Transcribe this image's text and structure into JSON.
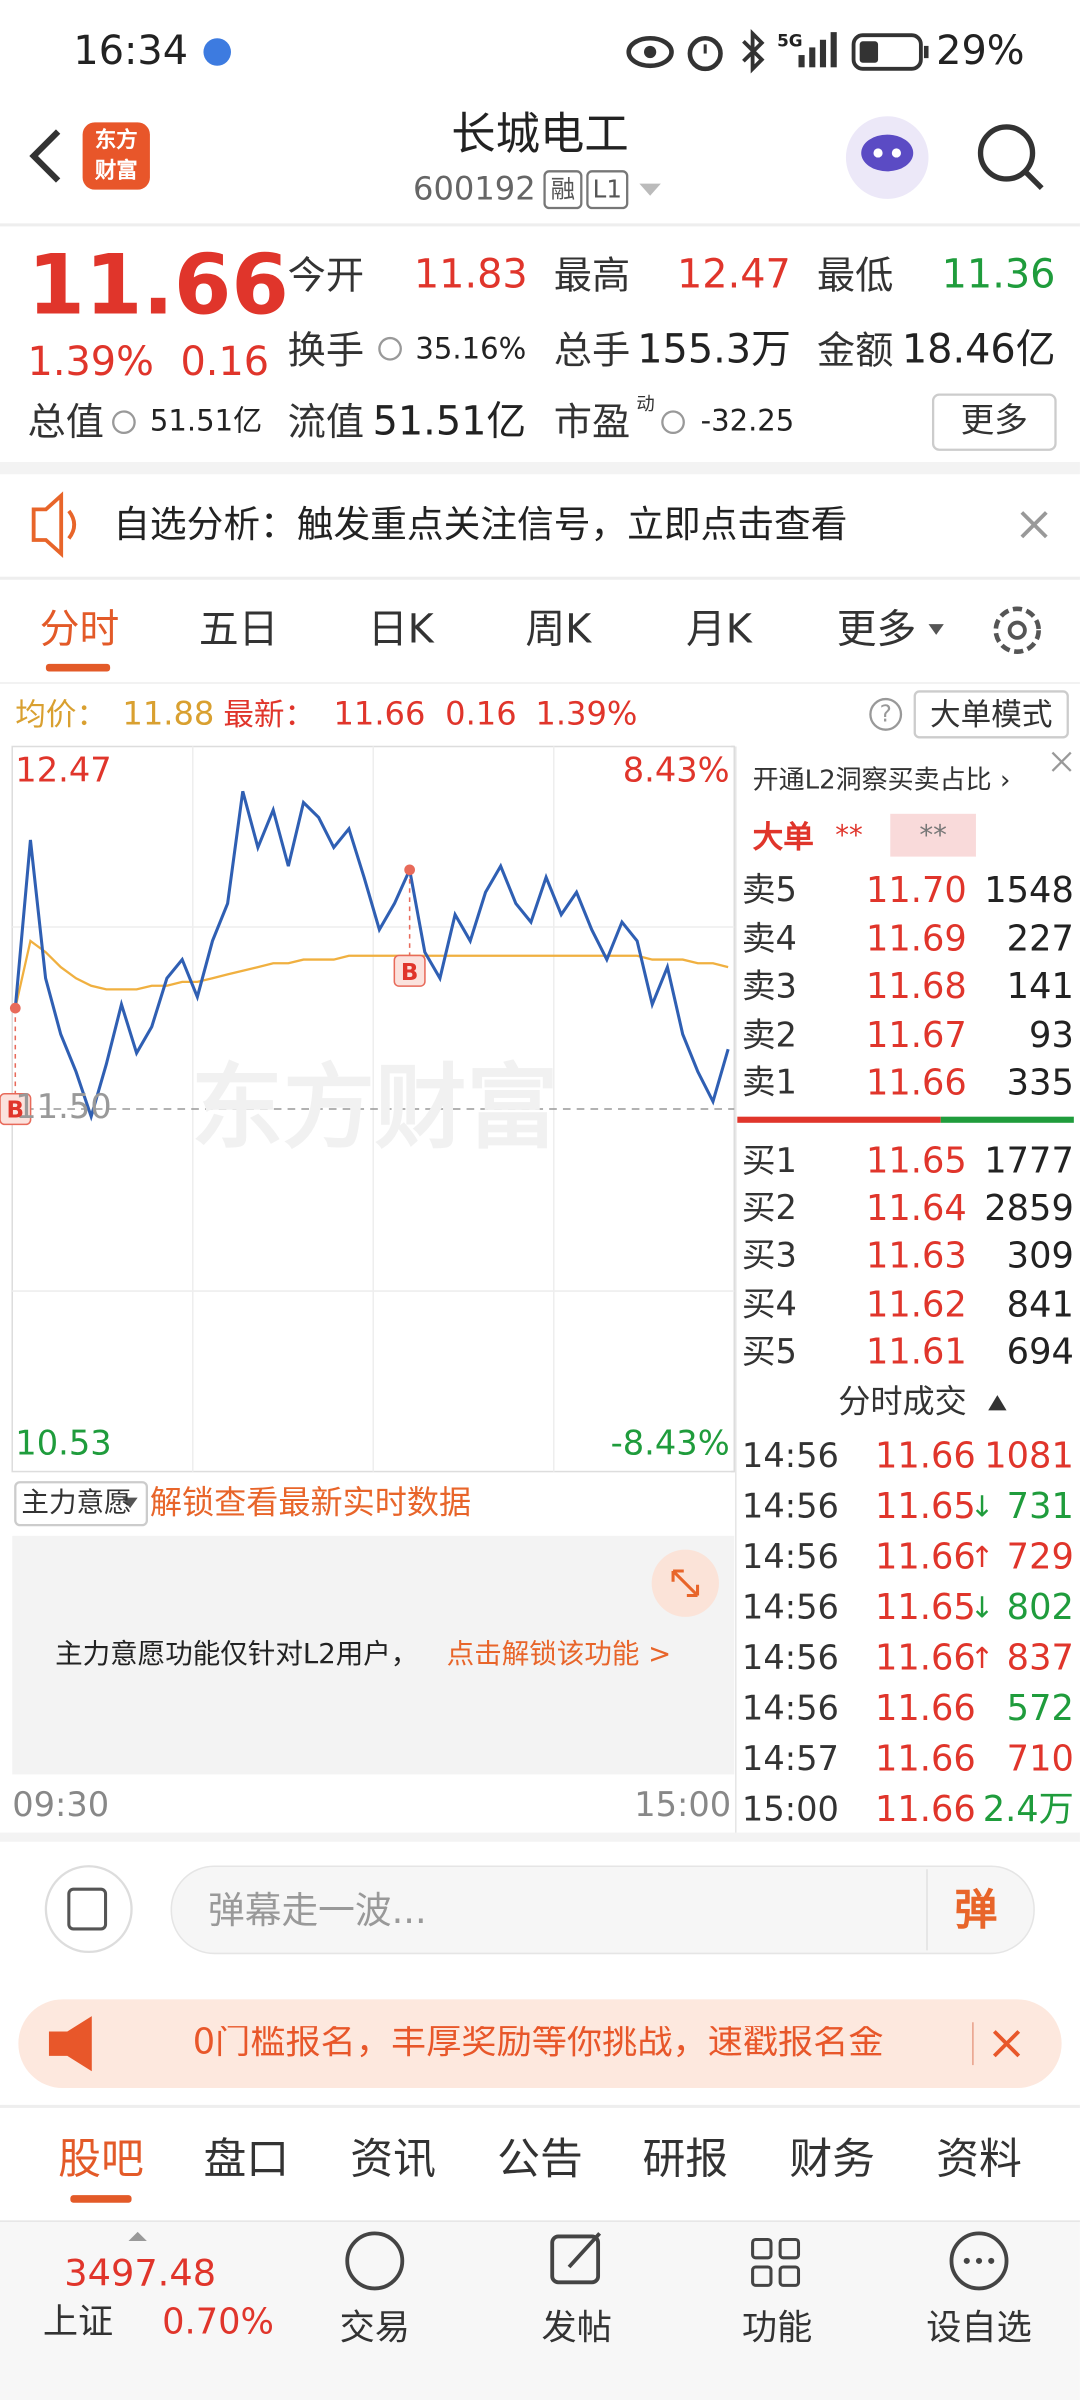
{
  "status_bar": {
    "time": "16:34",
    "network": "5G",
    "battery": "29%"
  },
  "header": {
    "logo": [
      "东方",
      "财富"
    ],
    "title": "长城电工",
    "code": "600192",
    "tags": [
      "融",
      "L1"
    ]
  },
  "quote": {
    "price": "11.66",
    "change_pct": "1.39%",
    "change": "0.16",
    "fields": [
      {
        "label": "今开",
        "value": "11.83",
        "color": "#e0352b"
      },
      {
        "label": "最高",
        "value": "12.47",
        "color": "#e0352b"
      },
      {
        "label": "最低",
        "value": "11.36",
        "color": "#1f9c3c"
      },
      {
        "label": "换手",
        "value": "35.16%",
        "color": "#222222"
      },
      {
        "label": "总手",
        "value": "155.3万",
        "color": "#222222"
      },
      {
        "label": "金额",
        "value": "18.46亿",
        "color": "#222222"
      },
      {
        "label": "总值",
        "value": "51.51亿",
        "color": "#222222"
      },
      {
        "label": "流值",
        "value": "51.51亿",
        "color": "#222222"
      },
      {
        "label": "市盈",
        "sup": "动",
        "value": "-32.25",
        "color": "#222222"
      }
    ],
    "more": "更多"
  },
  "banner": "自选分析：触发重点关注信号，立即点击查看",
  "tabs": {
    "items": [
      "分时",
      "五日",
      "日K",
      "周K",
      "月K",
      "更多"
    ],
    "active": 0
  },
  "info": {
    "avg_label": "均价：",
    "avg": "11.88",
    "latest_label": "最新：",
    "latest": "11.66",
    "change": "0.16",
    "change_pct": "1.39%",
    "help": "?",
    "button": "大单模式"
  },
  "chart": {
    "type": "line",
    "ylim": [
      10.53,
      12.47
    ],
    "yticks": [
      12.47,
      {
        "value": 11.5,
        "label": "11.50"
      },
      10.53
    ],
    "ytick_colors": [
      "#e0352b",
      "#999999",
      "#1f9c3c"
    ],
    "pct_ticks": [
      {
        "value": 12.47,
        "label": "8.43%"
      },
      {
        "value": 10.53,
        "label": "-8.43%"
      }
    ],
    "pct_tick_colors": [
      "#e0352b",
      "#1f9c3c"
    ],
    "xticks": [
      "09:30",
      "15:00"
    ],
    "watermark": "东方财富",
    "marker": "B",
    "price": {
      "color": "#2f5fb3",
      "values": [
        11.77,
        12.22,
        11.85,
        11.7,
        11.6,
        11.48,
        11.62,
        11.78,
        11.65,
        11.72,
        11.85,
        11.9,
        11.8,
        11.95,
        12.05,
        12.35,
        12.2,
        12.3,
        12.15,
        12.32,
        12.28,
        12.2,
        12.25,
        12.12,
        11.98,
        12.05,
        12.14,
        11.92,
        11.85,
        12.02,
        11.95,
        12.08,
        12.15,
        12.05,
        12.0,
        12.12,
        12.02,
        12.08,
        11.98,
        11.9,
        12.0,
        11.95,
        11.78,
        11.88,
        11.7,
        11.6,
        11.52,
        11.66
      ]
    },
    "avg": {
      "color": "#f0b040",
      "values": [
        11.77,
        11.95,
        11.92,
        11.88,
        11.85,
        11.83,
        11.82,
        11.82,
        11.82,
        11.83,
        11.83,
        11.84,
        11.84,
        11.85,
        11.86,
        11.87,
        11.88,
        11.89,
        11.89,
        11.9,
        11.9,
        11.9,
        11.91,
        11.91,
        11.91,
        11.91,
        11.91,
        11.91,
        11.91,
        11.91,
        11.91,
        11.91,
        11.91,
        11.91,
        11.91,
        11.91,
        11.91,
        11.91,
        11.91,
        11.91,
        11.91,
        11.91,
        11.9,
        11.9,
        11.9,
        11.89,
        11.89,
        11.88
      ]
    }
  },
  "order_book": {
    "header": "开通L2洞察买卖占比 ›",
    "big_label": "大单",
    "big_values": [
      "**",
      "**"
    ],
    "price_color": "#e0352b",
    "asks": [
      {
        "label": "卖5",
        "price": "11.70",
        "volume": "1548"
      },
      {
        "label": "卖4",
        "price": "11.69",
        "volume": "227"
      },
      {
        "label": "卖3",
        "price": "11.68",
        "volume": "141"
      },
      {
        "label": "卖2",
        "price": "11.67",
        "volume": "93"
      },
      {
        "label": "卖1",
        "price": "11.66",
        "volume": "335"
      }
    ],
    "bids": [
      {
        "label": "买1",
        "price": "11.65",
        "volume": "1777"
      },
      {
        "label": "买2",
        "price": "11.64",
        "volume": "2859"
      },
      {
        "label": "买3",
        "price": "11.63",
        "volume": "309"
      },
      {
        "label": "买4",
        "price": "11.62",
        "volume": "841"
      },
      {
        "label": "买5",
        "price": "11.61",
        "volume": "694"
      }
    ]
  },
  "trades": {
    "title": "分时成交",
    "rows": [
      {
        "time": "14:56",
        "price": "11.66",
        "volume": "1081",
        "color": "#e0352b"
      },
      {
        "time": "14:56",
        "price": "11.65",
        "arrow": "↓",
        "volume": "731",
        "color": "#1f9c3c"
      },
      {
        "time": "14:56",
        "price": "11.66",
        "arrow": "↑",
        "volume": "729",
        "color": "#e0352b"
      },
      {
        "time": "14:56",
        "price": "11.65",
        "arrow": "↓",
        "volume": "802",
        "color": "#1f9c3c"
      },
      {
        "time": "14:56",
        "price": "11.66",
        "arrow": "↑",
        "volume": "837",
        "color": "#e0352b"
      },
      {
        "time": "14:56",
        "price": "11.66",
        "volume": "572",
        "color": "#1f9c3c"
      },
      {
        "time": "14:57",
        "price": "11.66",
        "volume": "710",
        "color": "#e0352b"
      },
      {
        "time": "15:00",
        "price": "11.66",
        "volume": "2.4万",
        "color": "#1f9c3c"
      }
    ]
  },
  "main_force": {
    "dropdown": "主力意愿",
    "link": "解锁查看最新实时数据",
    "notice": "主力意愿功能仅针对L2用户，",
    "notice_link": "点击解锁该功能 >"
  },
  "comment": {
    "placeholder": "弹幕走一波...",
    "button": "弹"
  },
  "promo": "0门槛报名，丰厚奖励等你挑战，速戳报名金",
  "bottom_tabs": {
    "items": [
      "股吧",
      "盘口",
      "资讯",
      "公告",
      "研报",
      "财务",
      "资料"
    ],
    "active": 0
  },
  "nav": {
    "index_value": "3497.48",
    "index_name": "上证",
    "index_change": "0.70%",
    "items": [
      "交易",
      "发帖",
      "功能",
      "设自选"
    ]
  }
}
